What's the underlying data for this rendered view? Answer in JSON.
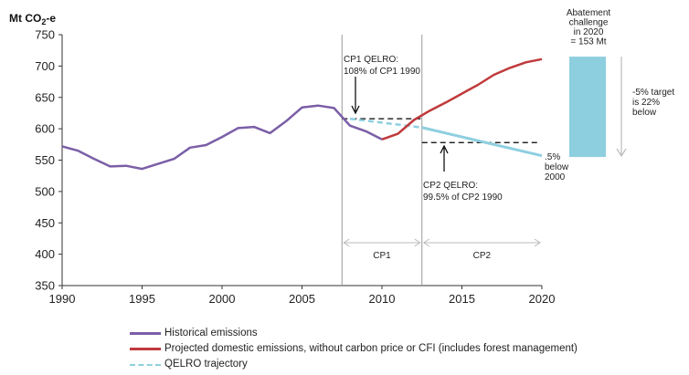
{
  "chart_data": {
    "type": "line",
    "ylabel": {
      "main": "Mt CO",
      "sub": "2",
      "suffix": "-e"
    },
    "xlim": [
      1990,
      2020
    ],
    "ylim": [
      350,
      750
    ],
    "xticks": [
      1990,
      1995,
      2000,
      2005,
      2010,
      2015,
      2020
    ],
    "yticks": [
      350,
      400,
      450,
      500,
      550,
      600,
      650,
      700,
      750
    ],
    "grid": false,
    "legend_position": "bottom",
    "series": [
      {
        "name": "Historical emissions",
        "color": "#7b5ea7",
        "style": "solid",
        "x": [
          1990,
          1991,
          1992,
          1993,
          1994,
          1995,
          1996,
          1997,
          1998,
          1999,
          2000,
          2001,
          2002,
          2003,
          2004,
          2005,
          2006,
          2007,
          2008,
          2009,
          2010
        ],
        "y": [
          572,
          565,
          552,
          540,
          541,
          536,
          544,
          552,
          570,
          574,
          587,
          601,
          603,
          593,
          612,
          634,
          637,
          633,
          605,
          596,
          583
        ]
      },
      {
        "name": "Projected domestic emissions, without carbon price or CFI (includes forest management)",
        "color": "#c0393b",
        "style": "solid",
        "x": [
          2010,
          2011,
          2012,
          2013,
          2014,
          2015,
          2016,
          2017,
          2018,
          2019,
          2020
        ],
        "y": [
          583,
          592,
          614,
          629,
          642,
          656,
          670,
          686,
          697,
          706,
          711
        ]
      },
      {
        "name": "QELRO trajectory",
        "color": "#8ecfdf",
        "style": "dashed-to-solid",
        "x": [
          2008,
          2012.5,
          2020
        ],
        "y": [
          616,
          602,
          557
        ]
      }
    ],
    "reference_lines": [
      {
        "x_start": 2007.5,
        "x_end": 2012.5,
        "y": 616,
        "style": "dashed",
        "color": "#000000"
      },
      {
        "x_start": 2012.5,
        "x_end": 2019.7,
        "y": 578,
        "style": "dashed",
        "color": "#000000"
      }
    ],
    "vertical_lines": [
      2007.5,
      2012.5
    ],
    "periods": [
      {
        "label": "CP1",
        "x_start": 2007.5,
        "x_end": 2012.5
      },
      {
        "label": "CP2",
        "x_start": 2012.5,
        "x_end": 2020
      }
    ],
    "abatement_bar": {
      "x": 2022,
      "y_low": 555,
      "y_high": 715,
      "color": "#8ecfdf"
    },
    "annotations": {
      "cp1": [
        "CP1 QELRO:",
        "108% of CP1 1990"
      ],
      "cp2": [
        "CP2 QELRO:",
        "99.5% of CP2 1990"
      ],
      "below": [
        ".5%",
        "below",
        "2000"
      ],
      "abatement": [
        "Abatement",
        "challenge",
        "in 2020",
        "= 153 Mt"
      ],
      "target": [
        "-5% target",
        "is 22%",
        "below"
      ]
    }
  }
}
